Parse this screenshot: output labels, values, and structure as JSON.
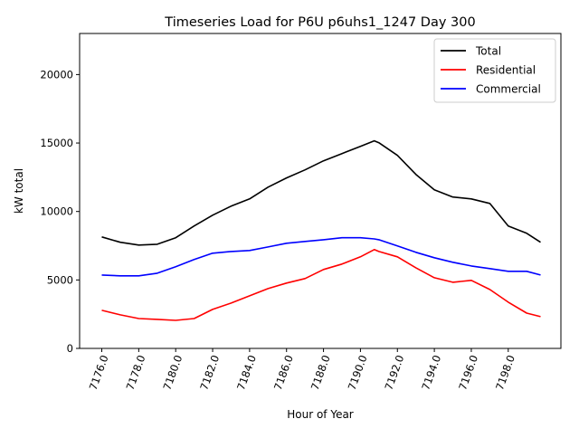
{
  "chart_data": {
    "type": "line",
    "title": "Timeseries Load for P6U p6uhs1_1247  Day 300",
    "xlabel": "Hour of Year",
    "ylabel": "kW total",
    "xlim": [
      7174.8,
      7200.85
    ],
    "ylim": [
      0,
      23000
    ],
    "xticks": [
      7176,
      7178,
      7180,
      7182,
      7184,
      7186,
      7188,
      7190,
      7192,
      7194,
      7196,
      7198
    ],
    "xtick_labels": [
      "7176.0",
      "7178.0",
      "7180.0",
      "7182.0",
      "7184.0",
      "7186.0",
      "7188.0",
      "7190.0",
      "7192.0",
      "7194.0",
      "7196.0",
      "7198.0"
    ],
    "yticks": [
      0,
      5000,
      10000,
      15000,
      20000
    ],
    "ytick_labels": [
      "0",
      "5000",
      "10000",
      "15000",
      "20000"
    ],
    "grid": false,
    "legend_placement": "top-right",
    "x": [
      7176,
      7177,
      7178,
      7179,
      7180,
      7181,
      7182,
      7183,
      7184,
      7185,
      7186,
      7187,
      7188,
      7189,
      7190,
      7190.75,
      7191,
      7192,
      7193,
      7194,
      7195,
      7196,
      7197,
      7198,
      7199,
      7199.75
    ],
    "series": [
      {
        "name": "Total",
        "color": "#000000",
        "values": [
          8140,
          7750,
          7550,
          7610,
          8080,
          8940,
          9730,
          10390,
          10920,
          11780,
          12450,
          13040,
          13700,
          14230,
          14760,
          15160,
          15020,
          14100,
          12710,
          11580,
          11060,
          10920,
          10590,
          8940,
          8410,
          7750
        ]
      },
      {
        "name": "Residential",
        "color": "#ff0000",
        "values": [
          2780,
          2450,
          2180,
          2120,
          2050,
          2180,
          2850,
          3310,
          3840,
          4370,
          4770,
          5100,
          5760,
          6160,
          6690,
          7220,
          7080,
          6690,
          5890,
          5160,
          4830,
          4970,
          4300,
          3380,
          2580,
          2320
        ]
      },
      {
        "name": "Commercial",
        "color": "#0000ff",
        "values": [
          5360,
          5300,
          5300,
          5490,
          5960,
          6490,
          6950,
          7080,
          7150,
          7410,
          7680,
          7810,
          7940,
          8080,
          8080,
          8000,
          7940,
          7480,
          7020,
          6620,
          6290,
          6020,
          5830,
          5630,
          5630,
          5360
        ]
      }
    ]
  }
}
